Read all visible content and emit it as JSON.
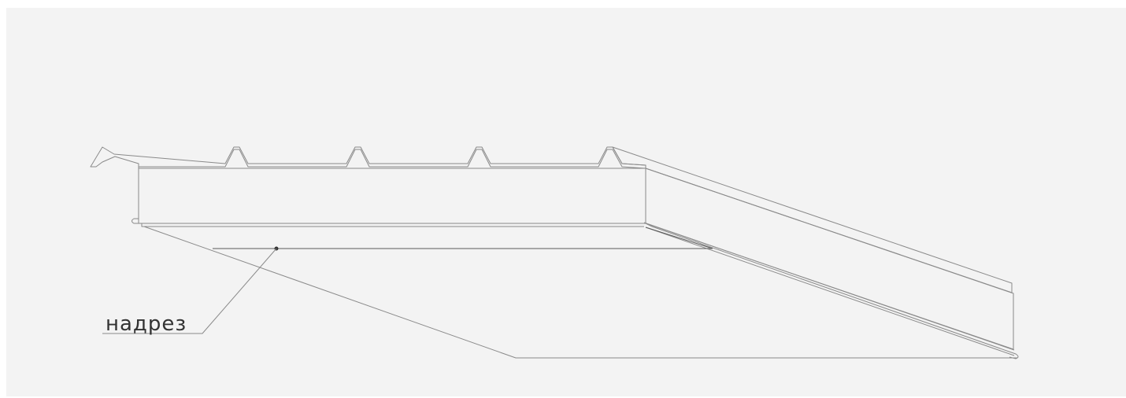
{
  "diagram": {
    "callout_label": "надрез"
  },
  "colors": {
    "background": "#f3f3f3",
    "insulation": "#9fd6a7",
    "hatch": "#6aa877",
    "outline": "#8a8a8a",
    "metal_sheet": "#ffffff"
  }
}
